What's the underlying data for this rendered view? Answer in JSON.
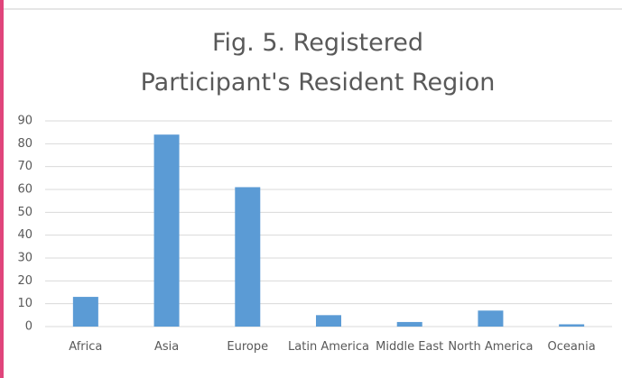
{
  "chart_data": {
    "type": "bar",
    "title": "Fig. 5. Registered Participant's Resident Region",
    "categories": [
      "Africa",
      "Asia",
      "Europe",
      "Latin America",
      "Middle East",
      "North America",
      "Oceania"
    ],
    "values": [
      13,
      84,
      61,
      5,
      2,
      7,
      1
    ],
    "color": "#5b9bd5",
    "ylim": [
      0,
      90
    ],
    "yticks": [
      0,
      10,
      20,
      30,
      40,
      50,
      60,
      70,
      80,
      90
    ],
    "grid": true
  }
}
